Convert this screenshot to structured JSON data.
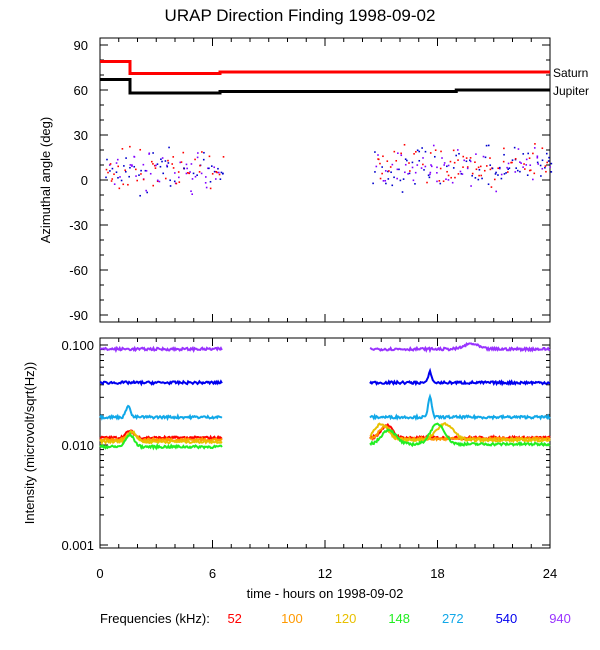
{
  "chart_data": [
    {
      "type": "scatter",
      "title": "URAP Direction Finding  1998-09-02",
      "ylabel": "Azimuthal angle (deg)",
      "ylim": [
        -90,
        90
      ],
      "yticks": [
        90,
        60,
        30,
        0,
        -30,
        -60,
        -90
      ],
      "xlim": [
        0,
        24
      ],
      "reference_lines": [
        {
          "name": "Saturn",
          "color": "#ff0000",
          "steps": [
            {
              "x0": 0,
              "x1": 1.6,
              "y": 79
            },
            {
              "x0": 1.6,
              "x1": 6.4,
              "y": 71
            },
            {
              "x0": 6.4,
              "x1": 24,
              "y": 72
            }
          ]
        },
        {
          "name": "Jupiter",
          "color": "#000000",
          "steps": [
            {
              "x0": 0,
              "x1": 1.6,
              "y": 67
            },
            {
              "x0": 1.6,
              "x1": 6.4,
              "y": 58
            },
            {
              "x0": 6.4,
              "x1": 19,
              "y": 59
            },
            {
              "x0": 19,
              "x1": 24,
              "y": 60
            }
          ]
        }
      ],
      "scatter_segments": [
        {
          "x0": 0.2,
          "x1": 6.5,
          "center": 6,
          "spread": 8
        },
        {
          "x0": 14.5,
          "x1": 24,
          "center": 9,
          "spread": 8
        }
      ],
      "scatter_colors": [
        "#0000cc",
        "#8000ff",
        "#ff0000"
      ]
    },
    {
      "type": "line",
      "ylabel": "Intensity (microvolt/sqrt(Hz))",
      "yscale": "log",
      "ylim": [
        0.001,
        0.12
      ],
      "ytick_labels": [
        "0.100",
        "0.010",
        "0.001"
      ],
      "yticks": [
        0.1,
        0.01,
        0.001
      ],
      "xlabel": "time - hours on 1998-09-02",
      "xticks": [
        0,
        6,
        12,
        18,
        24
      ],
      "x_tick_labels": [
        "0",
        "6",
        "12",
        "18",
        "24"
      ],
      "xlim": [
        0,
        24
      ],
      "segments": [
        [
          0,
          6.5
        ],
        [
          14.4,
          24
        ]
      ],
      "series": [
        {
          "name": "52",
          "color": "#ff0000",
          "level": 0.0118,
          "level2": 0.0118,
          "bumps": [
            [
              1.6,
              0.3,
              0.002
            ],
            [
              15.3,
              0.4,
              0.004
            ]
          ]
        },
        {
          "name": "100",
          "color": "#ff9900",
          "level": 0.0113,
          "level2": 0.0115,
          "bumps": [
            [
              1.7,
              0.3,
              0.002
            ],
            [
              15.2,
              0.4,
              0.004
            ]
          ]
        },
        {
          "name": "120",
          "color": "#e8c000",
          "level": 0.0108,
          "level2": 0.0112,
          "bumps": [
            [
              1.7,
              0.3,
              0.003
            ],
            [
              15.0,
              0.5,
              0.005
            ],
            [
              18.4,
              0.6,
              0.005
            ]
          ]
        },
        {
          "name": "148",
          "color": "#22ee22",
          "level": 0.0096,
          "level2": 0.0102,
          "bumps": [
            [
              1.6,
              0.3,
              0.003
            ],
            [
              15.4,
              0.5,
              0.004
            ],
            [
              18.0,
              0.5,
              0.006
            ]
          ]
        },
        {
          "name": "272",
          "color": "#11a8e8",
          "level": 0.019,
          "level2": 0.019,
          "bumps": [
            [
              1.5,
              0.15,
              0.006
            ],
            [
              17.6,
              0.12,
              0.012
            ]
          ]
        },
        {
          "name": "540",
          "color": "#0000ee",
          "level": 0.042,
          "level2": 0.042,
          "bumps": [
            [
              17.6,
              0.12,
              0.012
            ]
          ]
        },
        {
          "name": "940",
          "color": "#9933ff",
          "level": 0.091,
          "level2": 0.091,
          "bumps": [
            [
              19.8,
              0.5,
              0.012
            ]
          ]
        }
      ]
    }
  ],
  "legend_label": "Frequencies (kHz):",
  "legend_items": [
    "52",
    "100",
    "120",
    "148",
    "272",
    "540",
    "940"
  ]
}
